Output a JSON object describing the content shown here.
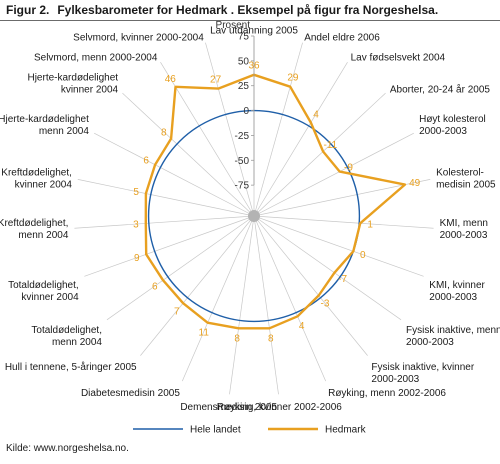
{
  "figure": {
    "lead": "Figur 2.",
    "title": "Fylkesbarometer for Hedmark . Eksempel på figur fra Norgeshelsa."
  },
  "source": "Kilde: www.norgeshelsa.no.",
  "colors": {
    "landet": "#1f5fa8",
    "hedmark": "#e8a020",
    "spokes": "#c8c8c8"
  },
  "chart_data": {
    "type": "radar",
    "axis_label": "Prosent",
    "ticks": [
      75,
      50,
      25,
      0,
      -25,
      -50,
      -75
    ],
    "rmin": -100,
    "rmax": 75,
    "categories": [
      "Lav utdanning 2005",
      "Andel eldre 2006",
      "Lav fødselsvekt 2004",
      "Aborter, 20-24 år 2005",
      "Høyt kolesterol\n2000-2003",
      "Kolesterol-\nmedisin 2005",
      "KMI, menn\n2000-2003",
      "KMI, kvinner\n2000-2003",
      "Fysisk inaktive, menn\n2000-2003",
      "Fysisk inaktive, kvinner\n2000-2003",
      "Røyking, menn 2002-2006",
      "Røyking, kvinner 2002-2006",
      "Demensmedisin 2005",
      "Diabetesmedisin 2005",
      "Hull i tennene, 5-åringer 2005",
      "Totaldødelighet,\nmenn 2004",
      "Totaldødelighet,\nkvinner 2004",
      "Kreftdødelighet,\nmenn 2004",
      "Kreftdødelighet,\nkvinner 2004",
      "Hjerte-kardødelighet\nmenn 2004",
      "Hjerte-kardødelighet\nkvinner 2004",
      "Selvmord, menn 2000-2004",
      "Selvmord, kvinner 2000-2004"
    ],
    "series": [
      {
        "name": "Hele landet",
        "values": [
          0,
          0,
          0,
          0,
          0,
          0,
          0,
          0,
          0,
          0,
          0,
          0,
          0,
          0,
          0,
          0,
          0,
          0,
          0,
          0,
          0,
          0,
          0
        ]
      },
      {
        "name": "Hedmark",
        "values": [
          36,
          29,
          4,
          -11,
          -9,
          49,
          1,
          0,
          -7,
          -3,
          4,
          8,
          8,
          11,
          7,
          6,
          9,
          3,
          5,
          6,
          8,
          46,
          27
        ]
      }
    ],
    "legend_position": "bottom"
  }
}
